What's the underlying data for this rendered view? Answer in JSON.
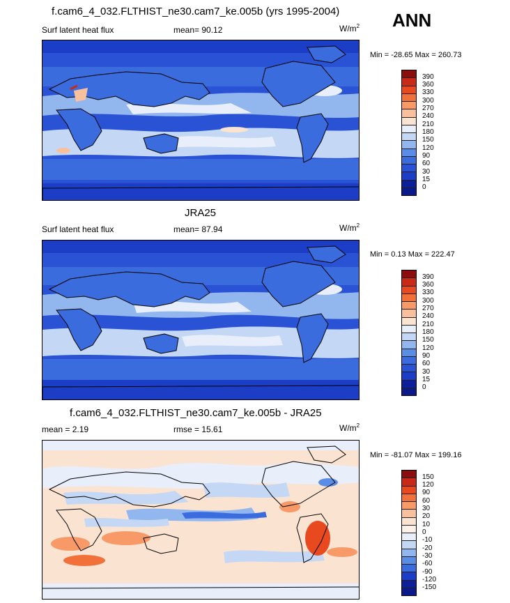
{
  "season": "ANN",
  "panels": [
    {
      "title": "f.cam6_4_032.FLTHIST_ne30.cam7_ke.005b (yrs 1995-2004)",
      "left_label": "Surf latent heat flux",
      "mid_label": "mean=  90.12",
      "units": "W/m",
      "units_sup": "2",
      "minmax": "Min = -28.65 Max = 260.73",
      "colorbar_ticks": [
        "390",
        "360",
        "330",
        "300",
        "270",
        "240",
        "210",
        "180",
        "150",
        "120",
        "90",
        "60",
        "30",
        "15",
        "0"
      ]
    },
    {
      "title": "JRA25",
      "left_label": "Surf latent heat flux",
      "mid_label": "mean=  87.94",
      "units": "W/m",
      "units_sup": "2",
      "minmax": "Min =   0.13 Max = 222.47",
      "colorbar_ticks": [
        "390",
        "360",
        "330",
        "300",
        "270",
        "240",
        "210",
        "180",
        "150",
        "120",
        "90",
        "60",
        "30",
        "15",
        "0"
      ]
    },
    {
      "title": "f.cam6_4_032.FLTHIST_ne30.cam7_ke.005b - JRA25",
      "left_label": "mean =   2.19",
      "mid_label": "rmse =  15.61",
      "units": "W/m",
      "units_sup": "2",
      "minmax": "Min = -81.07 Max = 199.16",
      "colorbar_ticks": [
        "150",
        "120",
        "90",
        "60",
        "30",
        "20",
        "10",
        "0",
        "-10",
        "-20",
        "-30",
        "-60",
        "-90",
        "-120",
        "-150"
      ]
    }
  ],
  "colors": {
    "abs_scale": [
      "#8b0d0d",
      "#c92a17",
      "#e8491f",
      "#f2703a",
      "#f79a68",
      "#f9c09e",
      "#fbe3d2",
      "#e8eefa",
      "#c4d8f5",
      "#92b6ee",
      "#5a8de6",
      "#3a6cde",
      "#2a52d4",
      "#1c3ec6",
      "#0c1f9a",
      "#0a1a8a"
    ],
    "diff_scale": [
      "#8b0d0d",
      "#c92a17",
      "#e8491f",
      "#f2703a",
      "#f79a68",
      "#f9c09e",
      "#fbe3d2",
      "#fdf1ea",
      "#e8eefa",
      "#c4d8f5",
      "#92b6ee",
      "#5a8de6",
      "#3a6cde",
      "#1c3ec6",
      "#0c1f9a",
      "#0a1a8a"
    ]
  }
}
